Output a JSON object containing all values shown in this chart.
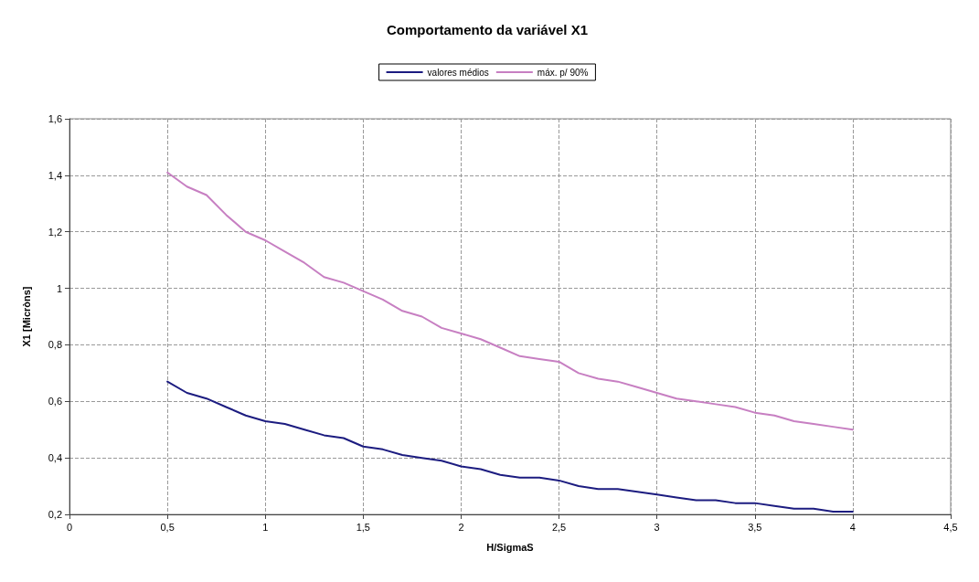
{
  "chart_data": {
    "type": "line",
    "title": "Comportamento da variável X1",
    "xlabel": "H/SigmaS",
    "ylabel": "X1 [Micròns]",
    "x": [
      0.5,
      0.6,
      0.7,
      0.8,
      0.9,
      1.0,
      1.1,
      1.2,
      1.3,
      1.4,
      1.5,
      1.6,
      1.7,
      1.8,
      1.9,
      2.0,
      2.1,
      2.2,
      2.3,
      2.4,
      2.5,
      2.6,
      2.7,
      2.8,
      2.9,
      3.0,
      3.1,
      3.2,
      3.3,
      3.4,
      3.5,
      3.6,
      3.7,
      3.8,
      3.9,
      4.0
    ],
    "series": [
      {
        "name": "valores médios",
        "color": "#1c1c80",
        "values": [
          0.67,
          0.63,
          0.61,
          0.58,
          0.55,
          0.53,
          0.52,
          0.5,
          0.48,
          0.47,
          0.44,
          0.43,
          0.41,
          0.4,
          0.39,
          0.37,
          0.36,
          0.34,
          0.33,
          0.33,
          0.32,
          0.3,
          0.29,
          0.29,
          0.28,
          0.27,
          0.26,
          0.25,
          0.25,
          0.24,
          0.24,
          0.23,
          0.22,
          0.22,
          0.21,
          0.21
        ]
      },
      {
        "name": "máx. p/ 90%",
        "color": "#c77fc2",
        "values": [
          1.41,
          1.36,
          1.33,
          1.26,
          1.2,
          1.17,
          1.13,
          1.09,
          1.04,
          1.02,
          0.99,
          0.96,
          0.92,
          0.9,
          0.86,
          0.84,
          0.82,
          0.79,
          0.76,
          0.75,
          0.74,
          0.7,
          0.68,
          0.67,
          0.65,
          0.63,
          0.61,
          0.6,
          0.59,
          0.58,
          0.56,
          0.55,
          0.53,
          0.52,
          0.51,
          0.5
        ]
      }
    ],
    "xlim": [
      0,
      4.5
    ],
    "xticks": [
      0,
      {
        "value": 0.5,
        "label": "0,5"
      },
      1,
      {
        "value": 1.5,
        "label": "1,5"
      },
      2,
      {
        "value": 2.5,
        "label": "2,5"
      },
      3,
      {
        "value": 3.5,
        "label": "3,5"
      },
      4,
      {
        "value": 4.5,
        "label": "4,5"
      }
    ],
    "ylim": [
      0.2,
      1.6
    ],
    "yticks": [
      {
        "value": 0.2,
        "label": "0,2"
      },
      {
        "value": 0.4,
        "label": "0,4"
      },
      {
        "value": 0.6,
        "label": "0,6"
      },
      {
        "value": 0.8,
        "label": "0,8"
      },
      1,
      {
        "value": 1.2,
        "label": "1,2"
      },
      {
        "value": 1.4,
        "label": "1,4"
      },
      {
        "value": 1.6,
        "label": "1,6"
      }
    ],
    "grid": true,
    "legend": "top",
    "marker": "none",
    "line_style": "solid"
  }
}
